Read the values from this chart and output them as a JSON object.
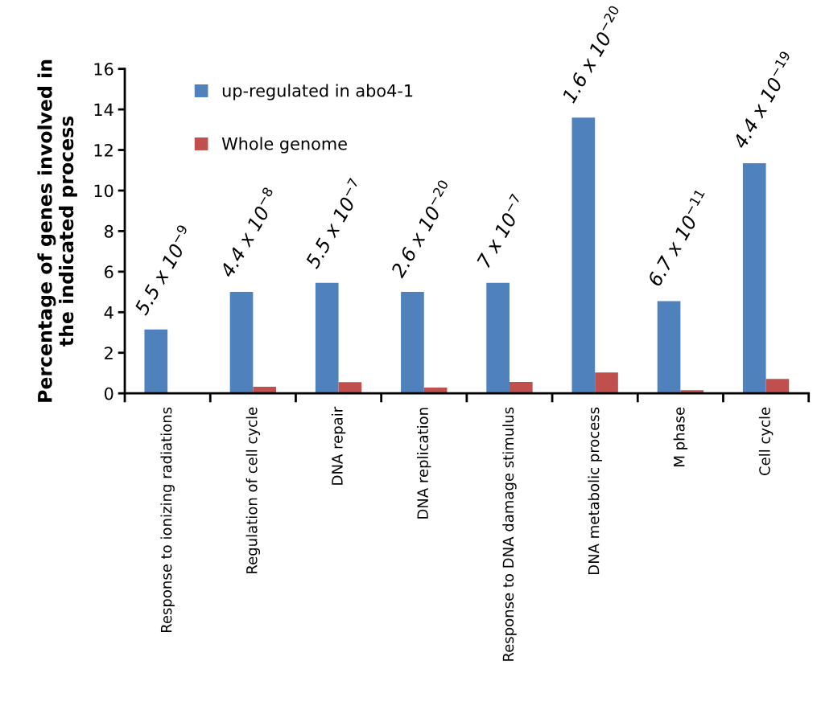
{
  "chart_data": {
    "type": "bar",
    "ylabel": "Percentage of genes involved in\nthe indicated process",
    "categories": [
      "Response to ionizing radiations",
      "Regulation of cell cycle",
      "DNA repair",
      "DNA replication",
      "Response to DNA damage stimulus",
      "DNA metabolic process",
      "M phase",
      "Cell cycle"
    ],
    "series": [
      {
        "name": "up-regulated in abo4-1",
        "color": "#4f81bd",
        "values": [
          3.15,
          5.0,
          5.45,
          5.0,
          5.45,
          13.6,
          4.55,
          11.35
        ]
      },
      {
        "name": "Whole genome",
        "color": "#c0504d",
        "values": [
          0,
          0.32,
          0.55,
          0.28,
          0.56,
          1.03,
          0.16,
          0.71
        ]
      }
    ],
    "ylim": [
      0,
      16
    ],
    "yticks": [
      0,
      2,
      4,
      6,
      8,
      10,
      12,
      14,
      16
    ],
    "grid": false,
    "legend": "top left",
    "annotations": [
      {
        "text": "5.5 x 10$^{−9}$",
        "x": "Response to ionizing radiations",
        "y": 3.15
      },
      {
        "text": "4.4 x 10$^{−8}$",
        "x": "Regulation of cell cycle",
        "y": 5.0
      },
      {
        "text": "5.5 x 10$^{−7}$",
        "x": "DNA repair",
        "y": 5.45
      },
      {
        "text": "2.6 x 10$^{−20}$",
        "x": "DNA replication",
        "y": 5.0
      },
      {
        "text": "7 x 10$^{−7}$",
        "x": "Response to DNA damage stimulus",
        "y": 5.45
      },
      {
        "text": "1.6 x 10$^{−20}$",
        "x": "DNA metabolic process",
        "y": 13.6
      },
      {
        "text": "6.7 x 10$^{−11}$",
        "x": "M phase",
        "y": 4.55
      },
      {
        "text": "4.4 x 10$^{−19}$",
        "x": "Cell cycle",
        "y": 11.35
      }
    ]
  }
}
